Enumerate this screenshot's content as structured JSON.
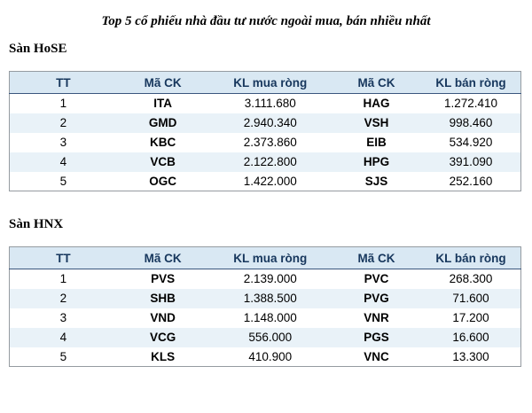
{
  "page": {
    "title": "Top 5 cổ phiếu nhà đầu tư nước ngoài mua, bán nhiều nhất"
  },
  "tables": [
    {
      "section": "Sàn HoSE",
      "headers": [
        "TT",
        "Mã CK",
        "KL mua ròng",
        "Mã CK",
        "KL bán ròng"
      ],
      "rows": [
        [
          "1",
          "ITA",
          "3.111.680",
          "HAG",
          "1.272.410"
        ],
        [
          "2",
          "GMD",
          "2.940.340",
          "VSH",
          "998.460"
        ],
        [
          "3",
          "KBC",
          "2.373.860",
          "EIB",
          "534.920"
        ],
        [
          "4",
          "VCB",
          "2.122.800",
          "HPG",
          "391.090"
        ],
        [
          "5",
          "OGC",
          "1.422.000",
          "SJS",
          "252.160"
        ]
      ]
    },
    {
      "section": "Sàn HNX",
      "headers": [
        "TT",
        "Mã CK",
        "KL mua ròng",
        "Mã CK",
        "KL bán ròng"
      ],
      "rows": [
        [
          "1",
          "PVS",
          "2.139.000",
          "PVC",
          "268.300"
        ],
        [
          "2",
          "SHB",
          "1.388.500",
          "PVG",
          "71.600"
        ],
        [
          "3",
          "VND",
          "1.148.000",
          "VNR",
          "17.200"
        ],
        [
          "4",
          "VCG",
          "556.000",
          "PGS",
          "16.600"
        ],
        [
          "5",
          "KLS",
          "410.900",
          "VNC",
          "13.300"
        ]
      ]
    }
  ],
  "colors": {
    "header_bg": "#d9e8f3",
    "header_text": "#17375d",
    "row_alt_bg": "#e9f2f8",
    "table_border": "#959ba1",
    "header_border_bottom": "#3a567e",
    "body_text": "#000000"
  }
}
